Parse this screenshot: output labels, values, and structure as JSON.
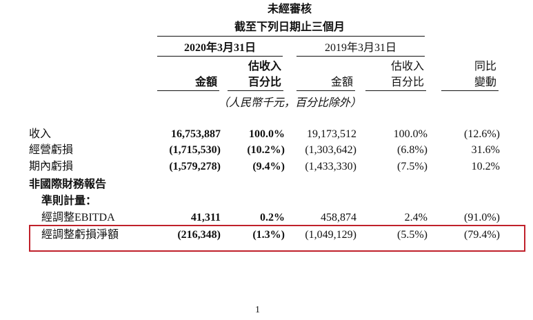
{
  "header": {
    "title": "未經審核",
    "period": "截至下列日期止三個月",
    "dates": [
      "2020年3月31日",
      "2019年3月31日"
    ],
    "columns": [
      [
        "金額"
      ],
      [
        "估收入",
        "百分比"
      ],
      [
        "金額"
      ],
      [
        "估收入",
        "百分比"
      ],
      [
        "同比",
        "變動"
      ]
    ],
    "unit_note": "（人民幣千元，百分比除外）"
  },
  "table": {
    "rows": [
      {
        "label": "收入",
        "cells": [
          "16,753,887",
          "100.0%",
          "19,173,512",
          "100.0%",
          "(12.6%)"
        ]
      },
      {
        "label": "經營虧損",
        "cells": [
          "(1,715,530)",
          "(10.2%)",
          "(1,303,642)",
          "(6.8%)",
          "31.6%"
        ]
      },
      {
        "label": "期內虧損",
        "cells": [
          "(1,579,278)",
          "(9.4%)",
          "(1,433,330)",
          "(7.5%)",
          "10.2%"
        ]
      },
      {
        "label": "非國際財務報告"
      },
      {
        "label": "準則計量："
      },
      {
        "label": "經調整EBITDA",
        "cells": [
          "41,311",
          "0.2%",
          "458,874",
          "2.4%",
          "(91.0%)"
        ]
      },
      {
        "label": "經調整虧損淨額",
        "cells": [
          "(216,348)",
          "(1.3%)",
          "(1,049,129)",
          "(5.5%)",
          "(79.4%)"
        ]
      }
    ]
  },
  "page_number": "1"
}
